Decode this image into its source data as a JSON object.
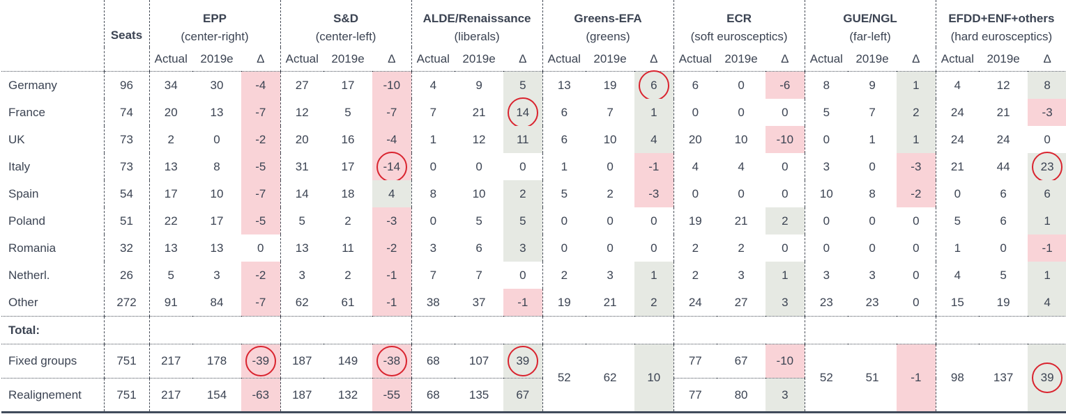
{
  "header": {
    "seats_label": "Seats",
    "sub_labels": [
      "Actual",
      "2019e",
      "Δ"
    ],
    "groups": [
      {
        "name": "EPP",
        "subtitle": "(center-right)"
      },
      {
        "name": "S&D",
        "subtitle": "(center-left)"
      },
      {
        "name": "ALDE/Renaissance",
        "subtitle": "(liberals)"
      },
      {
        "name": "Greens-EFA",
        "subtitle": "(greens)"
      },
      {
        "name": "ECR",
        "subtitle": "(soft eurosceptics)"
      },
      {
        "name": "GUE/NGL",
        "subtitle": "(far-left)"
      },
      {
        "name": "EFDD+ENF+others",
        "subtitle": "(hard eurosceptics)"
      }
    ]
  },
  "rows": [
    {
      "label": "Germany",
      "seats": "96",
      "cells": [
        [
          "34",
          "30",
          "-4"
        ],
        [
          "27",
          "17",
          "-10"
        ],
        [
          "4",
          "9",
          "5"
        ],
        [
          "13",
          "19",
          "6"
        ],
        [
          "6",
          "0",
          "-6"
        ],
        [
          "8",
          "9",
          "1"
        ],
        [
          "4",
          "12",
          "8"
        ]
      ]
    },
    {
      "label": "France",
      "seats": "74",
      "cells": [
        [
          "20",
          "13",
          "-7"
        ],
        [
          "12",
          "5",
          "-7"
        ],
        [
          "7",
          "21",
          "14"
        ],
        [
          "6",
          "7",
          "1"
        ],
        [
          "0",
          "0",
          "0"
        ],
        [
          "5",
          "7",
          "2"
        ],
        [
          "24",
          "21",
          "-3"
        ]
      ]
    },
    {
      "label": "UK",
      "seats": "73",
      "cells": [
        [
          "2",
          "0",
          "-2"
        ],
        [
          "20",
          "16",
          "-4"
        ],
        [
          "1",
          "12",
          "11"
        ],
        [
          "6",
          "10",
          "4"
        ],
        [
          "20",
          "10",
          "-10"
        ],
        [
          "0",
          "1",
          "1"
        ],
        [
          "24",
          "24",
          "0"
        ]
      ]
    },
    {
      "label": "Italy",
      "seats": "73",
      "cells": [
        [
          "13",
          "8",
          "-5"
        ],
        [
          "31",
          "17",
          "-14"
        ],
        [
          "0",
          "0",
          "0"
        ],
        [
          "1",
          "0",
          "-1"
        ],
        [
          "4",
          "4",
          "0"
        ],
        [
          "3",
          "0",
          "-3"
        ],
        [
          "21",
          "44",
          "23"
        ]
      ]
    },
    {
      "label": "Spain",
      "seats": "54",
      "cells": [
        [
          "17",
          "10",
          "-7"
        ],
        [
          "14",
          "18",
          "4"
        ],
        [
          "8",
          "10",
          "2"
        ],
        [
          "5",
          "2",
          "-3"
        ],
        [
          "0",
          "0",
          "0"
        ],
        [
          "10",
          "8",
          "-2"
        ],
        [
          "0",
          "6",
          "6"
        ]
      ]
    },
    {
      "label": "Poland",
      "seats": "51",
      "cells": [
        [
          "22",
          "17",
          "-5"
        ],
        [
          "5",
          "2",
          "-3"
        ],
        [
          "0",
          "5",
          "5"
        ],
        [
          "0",
          "0",
          "0"
        ],
        [
          "19",
          "21",
          "2"
        ],
        [
          "0",
          "0",
          "0"
        ],
        [
          "5",
          "6",
          "1"
        ]
      ]
    },
    {
      "label": "Romania",
      "seats": "32",
      "cells": [
        [
          "13",
          "13",
          "0"
        ],
        [
          "13",
          "11",
          "-2"
        ],
        [
          "3",
          "6",
          "3"
        ],
        [
          "0",
          "0",
          "0"
        ],
        [
          "2",
          "2",
          "0"
        ],
        [
          "0",
          "0",
          "0"
        ],
        [
          "1",
          "0",
          "-1"
        ]
      ]
    },
    {
      "label": "Netherl.",
      "seats": "26",
      "cells": [
        [
          "5",
          "3",
          "-2"
        ],
        [
          "3",
          "2",
          "-1"
        ],
        [
          "7",
          "7",
          "0"
        ],
        [
          "2",
          "3",
          "1"
        ],
        [
          "2",
          "3",
          "1"
        ],
        [
          "3",
          "3",
          "0"
        ],
        [
          "4",
          "5",
          "1"
        ]
      ]
    },
    {
      "label": "Other",
      "seats": "272",
      "cells": [
        [
          "91",
          "84",
          "-7"
        ],
        [
          "62",
          "61",
          "-1"
        ],
        [
          "38",
          "37",
          "-1"
        ],
        [
          "19",
          "21",
          "2"
        ],
        [
          "24",
          "27",
          "3"
        ],
        [
          "23",
          "23",
          "0"
        ],
        [
          "15",
          "19",
          "4"
        ]
      ]
    }
  ],
  "total_label": "Total:",
  "totals": [
    {
      "label": "Fixed groups",
      "seats": "751",
      "cells": [
        [
          "217",
          "178",
          "-39"
        ],
        [
          "187",
          "149",
          "-38"
        ],
        [
          "68",
          "107",
          "39"
        ],
        [
          "52",
          "62",
          "10"
        ],
        [
          "77",
          "67",
          "-10"
        ],
        [
          "52",
          "51",
          "-1"
        ],
        [
          "98",
          "137",
          "39"
        ]
      ]
    },
    {
      "label": "Realignement",
      "seats": "751",
      "cells": [
        [
          "217",
          "154",
          "-63"
        ],
        [
          "187",
          "132",
          "-55"
        ],
        [
          "68",
          "135",
          "67"
        ],
        null,
        [
          "77",
          "80",
          "3"
        ],
        null,
        null
      ]
    }
  ],
  "circled_cells": [
    {
      "row": "Germany",
      "group": "Greens-EFA"
    },
    {
      "row": "France",
      "group": "ALDE/Renaissance"
    },
    {
      "row": "Italy",
      "group": "S&D"
    },
    {
      "row": "Italy",
      "group": "EFDD+ENF+others"
    },
    {
      "row": "Fixed groups",
      "group": "EPP"
    },
    {
      "row": "Fixed groups",
      "group": "S&D"
    },
    {
      "row": "Fixed groups",
      "group": "ALDE/Renaissance"
    },
    {
      "row": "Fixed groups",
      "group": "EFDD+ENF+others"
    }
  ],
  "colors": {
    "negative_fill": "#f9d3d7",
    "positive_fill": "#e6e9e3",
    "circle": "#d9232e",
    "text": "#3b4352"
  }
}
